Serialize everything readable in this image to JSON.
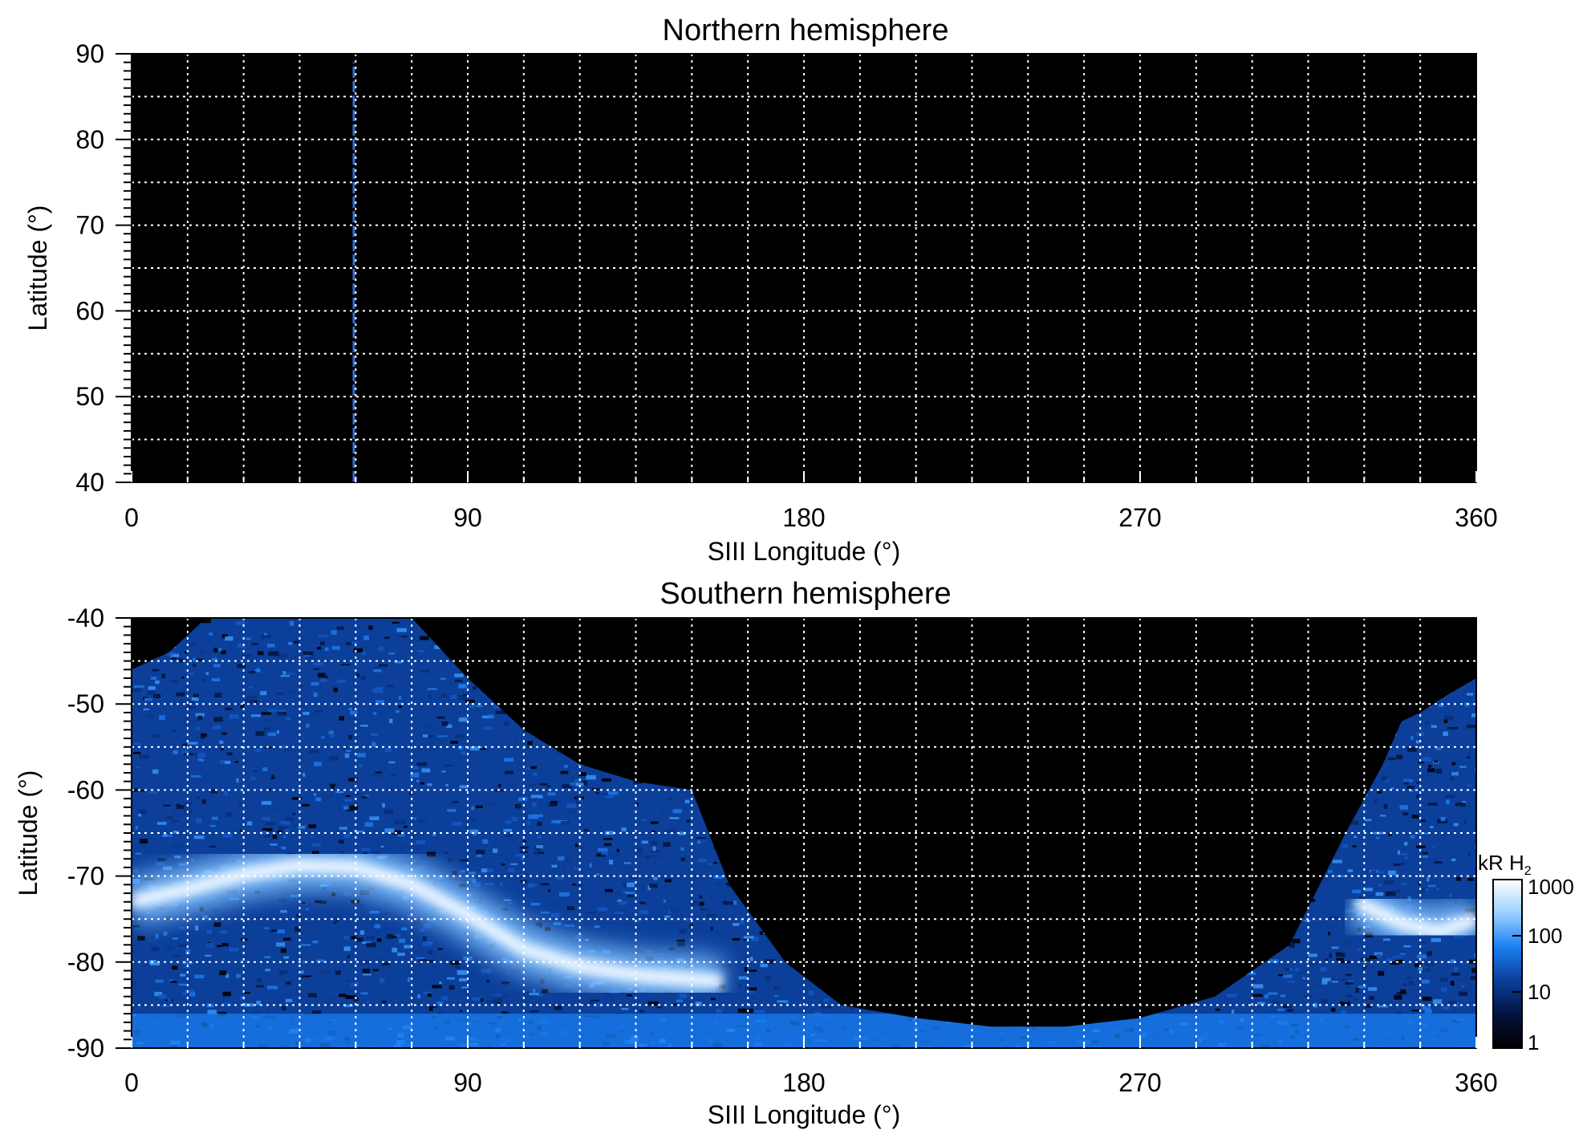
{
  "chart_data": [
    {
      "type": "heatmap",
      "title": "Northern hemisphere",
      "xlabel": "SIII Longitude (°)",
      "ylabel": "Latitude (°)",
      "xlim": [
        0,
        360
      ],
      "ylim": [
        40,
        90
      ],
      "xticks": [
        "0",
        "90",
        "180",
        "270",
        "360"
      ],
      "yticks": [
        "40",
        "50",
        "60",
        "70",
        "80",
        "90"
      ],
      "xtick_values": [
        0,
        90,
        180,
        270,
        360
      ],
      "ytick_values": [
        40,
        50,
        60,
        70,
        80,
        90
      ],
      "grid": true,
      "grid_lon_step": 15,
      "grid_lat_step": 5,
      "background": "#000000",
      "features": [
        {
          "kind": "meridian-trace",
          "longitude": 59.5,
          "lat_range": [
            40,
            89
          ],
          "color": "#2f6fd8"
        }
      ]
    },
    {
      "type": "heatmap",
      "title": "Southern hemisphere",
      "xlabel": "SIII Longitude (°)",
      "ylabel": "Latitude (°)",
      "xlim": [
        0,
        360
      ],
      "ylim": [
        -90,
        -40
      ],
      "xticks": [
        "0",
        "90",
        "180",
        "270",
        "360"
      ],
      "yticks": [
        "-90",
        "-80",
        "-70",
        "-60",
        "-50",
        "-40"
      ],
      "xtick_values": [
        0,
        90,
        180,
        270,
        360
      ],
      "ytick_values": [
        -90,
        -80,
        -70,
        -60,
        -50,
        -40
      ],
      "grid": true,
      "grid_lon_step": 15,
      "grid_lat_step": 5,
      "background": "#000000",
      "observed_region_north_edge": {
        "longitude": [
          0,
          10,
          20,
          40,
          60,
          75,
          90,
          105,
          120,
          135,
          150,
          160,
          175,
          190,
          210,
          230,
          250,
          270,
          290,
          310,
          325,
          335,
          340,
          345,
          352,
          360
        ],
        "latitude": [
          -46,
          -44,
          -40,
          -40,
          -40,
          -40,
          -47,
          -53,
          -57,
          -59,
          -60,
          -71,
          -80,
          -85,
          -86.5,
          -87.5,
          -87.5,
          -86.5,
          -84,
          -78,
          -65,
          -57,
          -52,
          -51,
          -49,
          -47
        ]
      },
      "main_oval": {
        "longitude": [
          0,
          15,
          30,
          45,
          60,
          75,
          90,
          105,
          120,
          135,
          150,
          158,
          328,
          340,
          350,
          360
        ],
        "latitude": [
          -73,
          -71.5,
          -69.8,
          -68.8,
          -69,
          -71,
          -74.5,
          -78.5,
          -80.5,
          -81.5,
          -82,
          -82.2,
          -73,
          -75.5,
          -76.5,
          -75
        ],
        "brightness_kR": 1000
      },
      "colorbar": {
        "label": "kR H",
        "label_subscript": "2",
        "scale": "log",
        "range": [
          1,
          1000
        ],
        "ticks": [
          "1",
          "10",
          "100",
          "1000"
        ],
        "tick_values": [
          1,
          10,
          100,
          1000
        ],
        "colors": [
          "#000000",
          "#05123f",
          "#0b3f9a",
          "#1a7ff0",
          "#9ad0ff",
          "#ffffff"
        ]
      }
    }
  ]
}
